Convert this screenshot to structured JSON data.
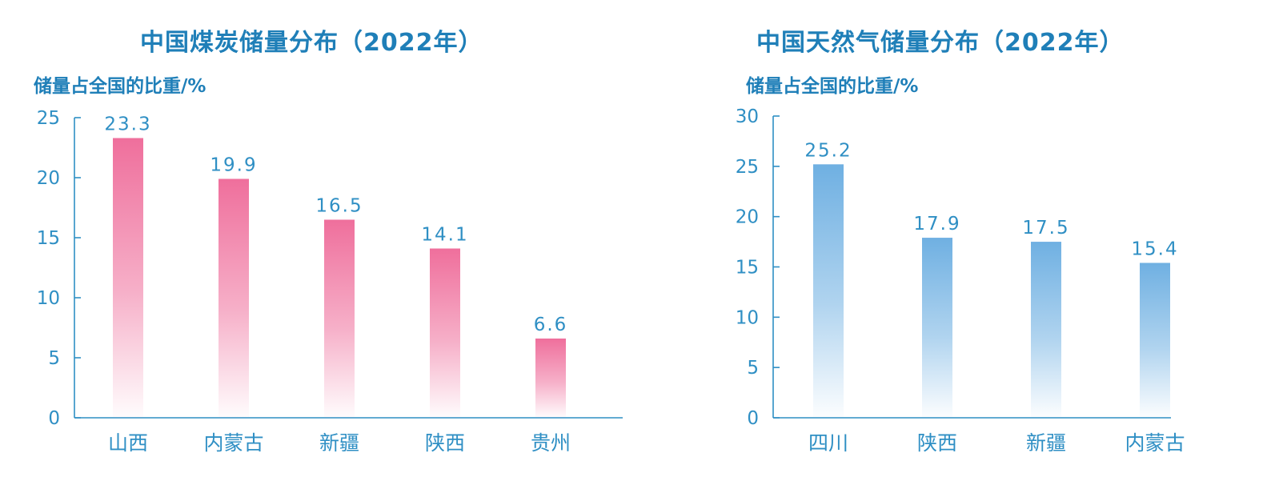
{
  "colors": {
    "text": "#2f8fc4",
    "title": "#1f7fb8",
    "coal_bar_top": "#ef6f9c",
    "coal_bar_bottom": "#ffffff",
    "gas_bar_top": "#6fb0e2",
    "gas_bar_bottom": "#ffffff"
  },
  "chart_data": [
    {
      "type": "bar",
      "title": "中国煤炭储量分布（2022年）",
      "ylabel": "储量占全国的比重/%",
      "xlabel": "",
      "categories": [
        "山西",
        "内蒙古",
        "新疆",
        "陕西",
        "贵州"
      ],
      "values": [
        23.3,
        19.9,
        16.5,
        14.1,
        6.6
      ],
      "value_labels": [
        "23.3",
        "19.9",
        "16.5",
        "14.1",
        "6.6"
      ],
      "ylim": [
        0,
        25
      ],
      "yticks": [
        "0",
        "5",
        "10",
        "15",
        "20",
        "25"
      ],
      "bar_color": "#ef6f9c",
      "grid": false,
      "legend": "none"
    },
    {
      "type": "bar",
      "title": "中国天然气储量分布（2022年）",
      "ylabel": "储量占全国的比重/%",
      "xlabel": "",
      "categories": [
        "四川",
        "陕西",
        "新疆",
        "内蒙古"
      ],
      "values": [
        25.2,
        17.9,
        17.5,
        15.4
      ],
      "value_labels": [
        "25.2",
        "17.9",
        "17.5",
        "15.4"
      ],
      "ylim": [
        0,
        30
      ],
      "yticks": [
        "0",
        "5",
        "10",
        "15",
        "20",
        "25",
        "30"
      ],
      "bar_color": "#6fb0e2",
      "grid": false,
      "legend": "none"
    }
  ]
}
